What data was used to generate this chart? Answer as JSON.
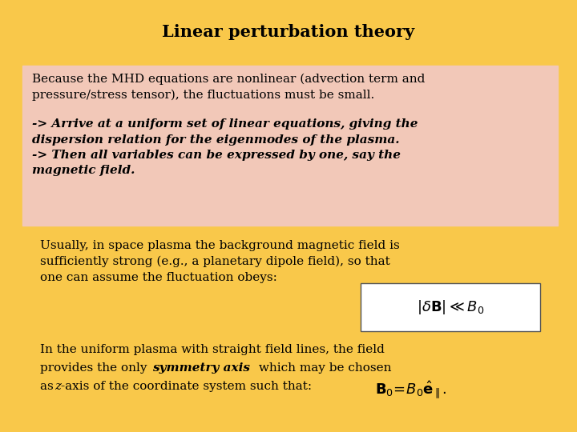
{
  "background_color": "#F9C84A",
  "title": "Linear perturbation theory",
  "title_fontsize": 15,
  "title_fontweight": "bold",
  "box1_bg": "#F2C8B8",
  "text_normal_1": "Because the MHD equations are nonlinear (advection term and\npressure/stress tensor), the fluctuations must be small.",
  "text_italic_1": "-> Arrive at a uniform set of linear equations, giving the\ndispersion relation for the eigenmodes of the plasma.\n-> Then all variables can be expressed by one, say the\nmagnetic field.",
  "text_usually": "Usually, in space plasma the background magnetic field is\nsufficiently strong (e.g., a planetary dipole field), so that\none can assume the fluctuation obeys:",
  "formula_box_color": "#FFFFFF",
  "text_color": "#000000",
  "font_family": "serif",
  "fontsize": 11
}
